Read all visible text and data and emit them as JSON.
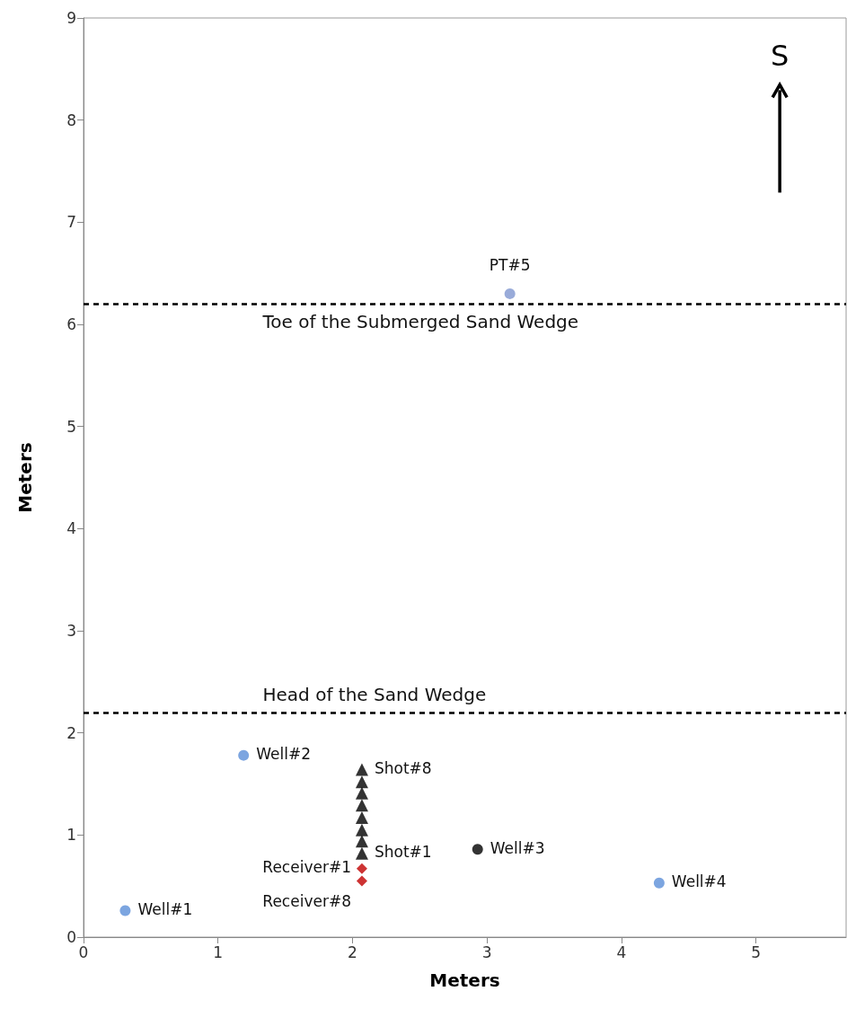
{
  "chart_data": {
    "type": "scatter",
    "xlabel": "Meters",
    "ylabel": "Meters",
    "xlim": [
      0,
      5.67
    ],
    "xticks": [
      0,
      1,
      2,
      3,
      4,
      5
    ],
    "ylim": [
      0,
      9
    ],
    "yticks": [
      0,
      1,
      2,
      3,
      4,
      5,
      6,
      7,
      8,
      9
    ],
    "grid": false,
    "series": [
      {
        "color": "#5b8fd8",
        "marker": "circle",
        "x": [
          0.31,
          1.19,
          4.28
        ],
        "values": [
          0.26,
          1.78,
          0.53
        ]
      },
      {
        "color": "#000000",
        "marker": "circle",
        "x": [
          2.93
        ],
        "values": [
          0.86
        ]
      },
      {
        "color": "#8096d0",
        "marker": "circle",
        "x": [
          3.17
        ],
        "values": [
          6.3
        ]
      },
      {
        "color": "#000000",
        "marker": "triangle",
        "x": [
          2.07,
          2.07,
          2.07,
          2.07,
          2.07,
          2.07,
          2.07,
          2.07
        ],
        "values": [
          0.82,
          0.94,
          1.05,
          1.17,
          1.29,
          1.41,
          1.52,
          1.64
        ]
      },
      {
        "color": "#c00000",
        "marker": "diamond",
        "x": [
          2.07,
          2.07
        ],
        "values": [
          0.67,
          0.55
        ]
      }
    ],
    "ref_lines": [
      {
        "axis": "y",
        "value": 6.2,
        "label": "Toe of the Submerged Sand Wedge",
        "color": "#000000",
        "line_style": "dashed"
      },
      {
        "axis": "y",
        "value": 2.2,
        "label": "Head of the Sand Wedge",
        "color": "#000000",
        "line_style": "dashed"
      }
    ],
    "annotations": [
      {
        "text": "Well#1",
        "x": 0.31,
        "y": 0.26
      },
      {
        "text": "Well#2",
        "x": 1.19,
        "y": 1.78
      },
      {
        "text": "Well#3",
        "x": 2.93,
        "y": 0.86
      },
      {
        "text": "Well#4",
        "x": 4.28,
        "y": 0.53
      },
      {
        "text": "PT#5",
        "x": 3.17,
        "y": 6.3
      },
      {
        "text": "Shot#8",
        "x": 2.07,
        "y": 1.64
      },
      {
        "text": "Shot#1",
        "x": 2.07,
        "y": 0.82
      },
      {
        "text": "Receiver#1",
        "x": 2.07,
        "y": 0.67
      },
      {
        "text": "Receiver#8",
        "x": 2.07,
        "y": 0.55
      },
      "S"
    ]
  }
}
